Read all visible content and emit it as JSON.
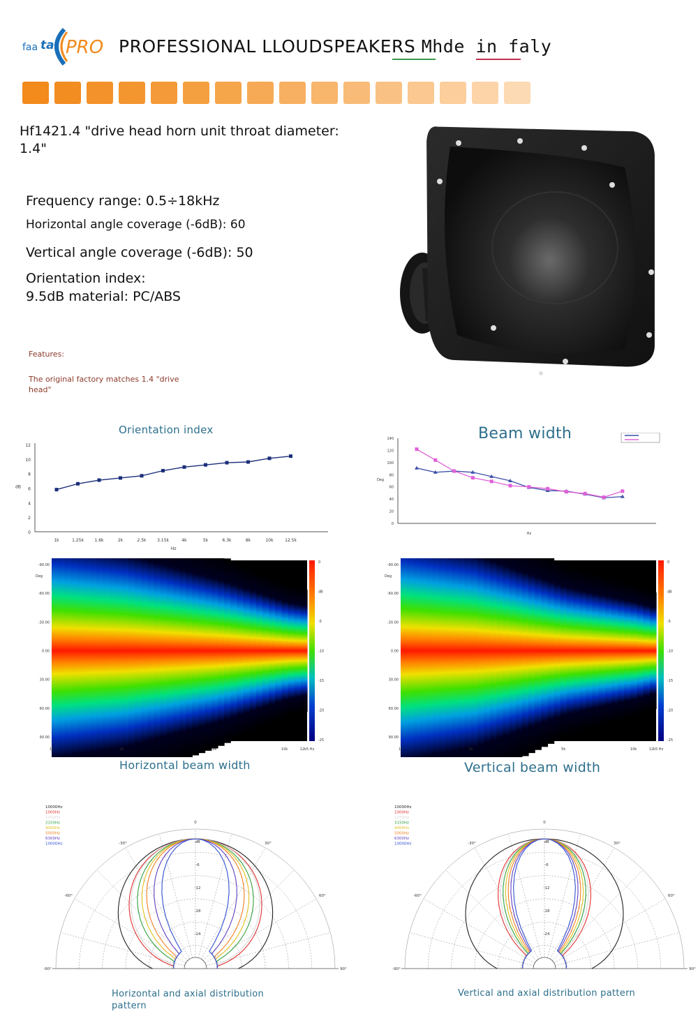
{
  "header": {
    "logo_text_1": "faa",
    "logo_text_2": "tal",
    "logo_text_3": "PRO",
    "title_main": "PROFESSIONAL LLOUDSPEAKERS ",
    "title_italic": "Mhde in faly"
  },
  "colors": {
    "accent": "#f28a1c",
    "swatches": [
      "#f28a1c",
      "#f28d22",
      "#f3922a",
      "#f39630",
      "#f49a38",
      "#f5a040",
      "#f5a54a",
      "#f6aa55",
      "#f7b061",
      "#f7b66c",
      "#f8bc78",
      "#f9c284",
      "#fac890",
      "#fbce9c",
      "#fcd4a8",
      "#fcdab3"
    ],
    "caption": "#2d6f8c"
  },
  "product": {
    "title": "Hf1421.4 \"drive head horn unit throat diameter: 1.4\"",
    "specs": {
      "frequency": "Frequency range: 0.5÷18kHz",
      "horizontal": "Horizontal angle coverage (-6dB): 60",
      "vertical": "Vertical angle coverage (-6dB): 50",
      "orientation_1": "Orientation index:",
      "orientation_2": "9.5dB material: PC/ABS"
    },
    "features_label": "Features:",
    "features_text": "The original factory matches 1.4 \"drive head\""
  },
  "captions": {
    "orientation": "Orientation index",
    "beam": "Beam width",
    "hbeam": "Horizontal beam width",
    "vbeam": "Vertical beam width",
    "hpolar": "Horizontal and axial distribution pattern",
    "vpolar": "Vertical and axial distribution pattern"
  },
  "chart_data": [
    {
      "type": "line",
      "title": "Orientation index",
      "xlabel": "Hz",
      "ylabel": "dB",
      "x": [
        "1k",
        "1.25k",
        "1.6k",
        "2k",
        "2.5k",
        "3.15k",
        "4k",
        "5k",
        "6.3k",
        "8k",
        "10k",
        "12.5k"
      ],
      "series": [
        {
          "values": [
            5.8,
            6.6,
            7.1,
            7.4,
            7.7,
            8.4,
            8.9,
            9.2,
            9.5,
            9.6,
            10.1,
            10.4
          ]
        }
      ],
      "ylim": [
        0,
        12
      ],
      "yticks": [
        "0",
        "2",
        "4",
        "6",
        "8",
        "10",
        "12"
      ],
      "grid": false
    },
    {
      "type": "line",
      "title": "Beam width",
      "ylabel": "Deg",
      "xlabel": "Hz",
      "ylim": [
        0,
        140
      ],
      "yticks": [
        "0",
        "20",
        "40",
        "60",
        "80",
        "100",
        "120",
        "140"
      ],
      "series": [
        {
          "color": "#3d4fa8",
          "values": [
            91,
            84,
            86,
            84,
            77,
            70,
            59,
            54,
            53,
            48,
            42,
            44
          ]
        },
        {
          "color": "#e060d8",
          "values": [
            122,
            104,
            86,
            75,
            69,
            62,
            60,
            57,
            52,
            49,
            43,
            53
          ]
        }
      ],
      "legend": "top-right"
    },
    {
      "type": "heatmap",
      "title": "Horizontal beam width",
      "ylabel": "Deg",
      "yticks": [
        "-90.00",
        "-60.00",
        "-30.00",
        "0.00",
        "30.00",
        "60.00",
        "90.00"
      ],
      "xticks": [
        "1k",
        "2k",
        "5k",
        "10k",
        "12k5 Hz"
      ],
      "colorbar_ticks": [
        "0",
        "dB",
        "-5",
        "-10",
        "-15",
        "-20",
        "-25"
      ],
      "envelope_deg": [
        [
          1000,
          78
        ],
        [
          2000,
          70
        ],
        [
          5000,
          52
        ],
        [
          10000,
          35
        ],
        [
          12500,
          32
        ]
      ]
    },
    {
      "type": "heatmap",
      "title": "Vertical beam width",
      "ylabel": "Deg",
      "yticks": [
        "-90.00",
        "-60.00",
        "-30.00",
        "0.00",
        "30.00",
        "60.00",
        "90.00"
      ],
      "xticks": [
        "1k",
        "2k",
        "5k",
        "10k",
        "12k5 Hz"
      ],
      "colorbar_ticks": [
        "0",
        "dB",
        "-5",
        "-10",
        "-15",
        "-20",
        "-25"
      ],
      "envelope_deg": [
        [
          1000,
          80
        ],
        [
          2000,
          70
        ],
        [
          5000,
          46
        ],
        [
          10000,
          35
        ],
        [
          12500,
          30
        ]
      ]
    },
    {
      "type": "polar",
      "title": "Horizontal and axial distribution pattern",
      "legend": [
        "10000Hz",
        "1000Hz",
        "1250Hz",
        "2150Hz",
        "4000Hz",
        "5000Hz",
        "6300Hz",
        "10000Hz"
      ],
      "legend_colors": [
        "#222222",
        "#e03030",
        "#d8d8d8",
        "#30a040",
        "#e0c020",
        "#f08020",
        "#6040c0",
        "#3050d0"
      ],
      "angle_labels": [
        "0",
        "-30°",
        "30°",
        "-60°",
        "60°",
        "-90°",
        "90°"
      ],
      "radial_labels": [
        "dB",
        "-6",
        "-12",
        "-18",
        "-24"
      ],
      "beamwidths_deg": [
        160,
        130,
        125,
        110,
        100,
        90,
        75,
        60
      ]
    },
    {
      "type": "polar",
      "title": "Vertical and axial distribution pattern",
      "legend": [
        "10000Hz",
        "1000Hz",
        "1250Hz",
        "3150Hz",
        "4000Hz",
        "5000Hz",
        "6300Hz",
        "10000Hz"
      ],
      "legend_colors": [
        "#222222",
        "#e03030",
        "#d8d8d8",
        "#30a040",
        "#e0c020",
        "#f08020",
        "#6040c0",
        "#3050d0"
      ],
      "angle_labels": [
        "0",
        "-30°",
        "30°",
        "-60°",
        "60°",
        "-90°",
        "90°"
      ],
      "radial_labels": [
        "dB",
        "-6",
        "-12",
        "-18",
        "-24"
      ],
      "beamwidths_deg": [
        165,
        85,
        80,
        75,
        70,
        65,
        60,
        55
      ]
    }
  ]
}
